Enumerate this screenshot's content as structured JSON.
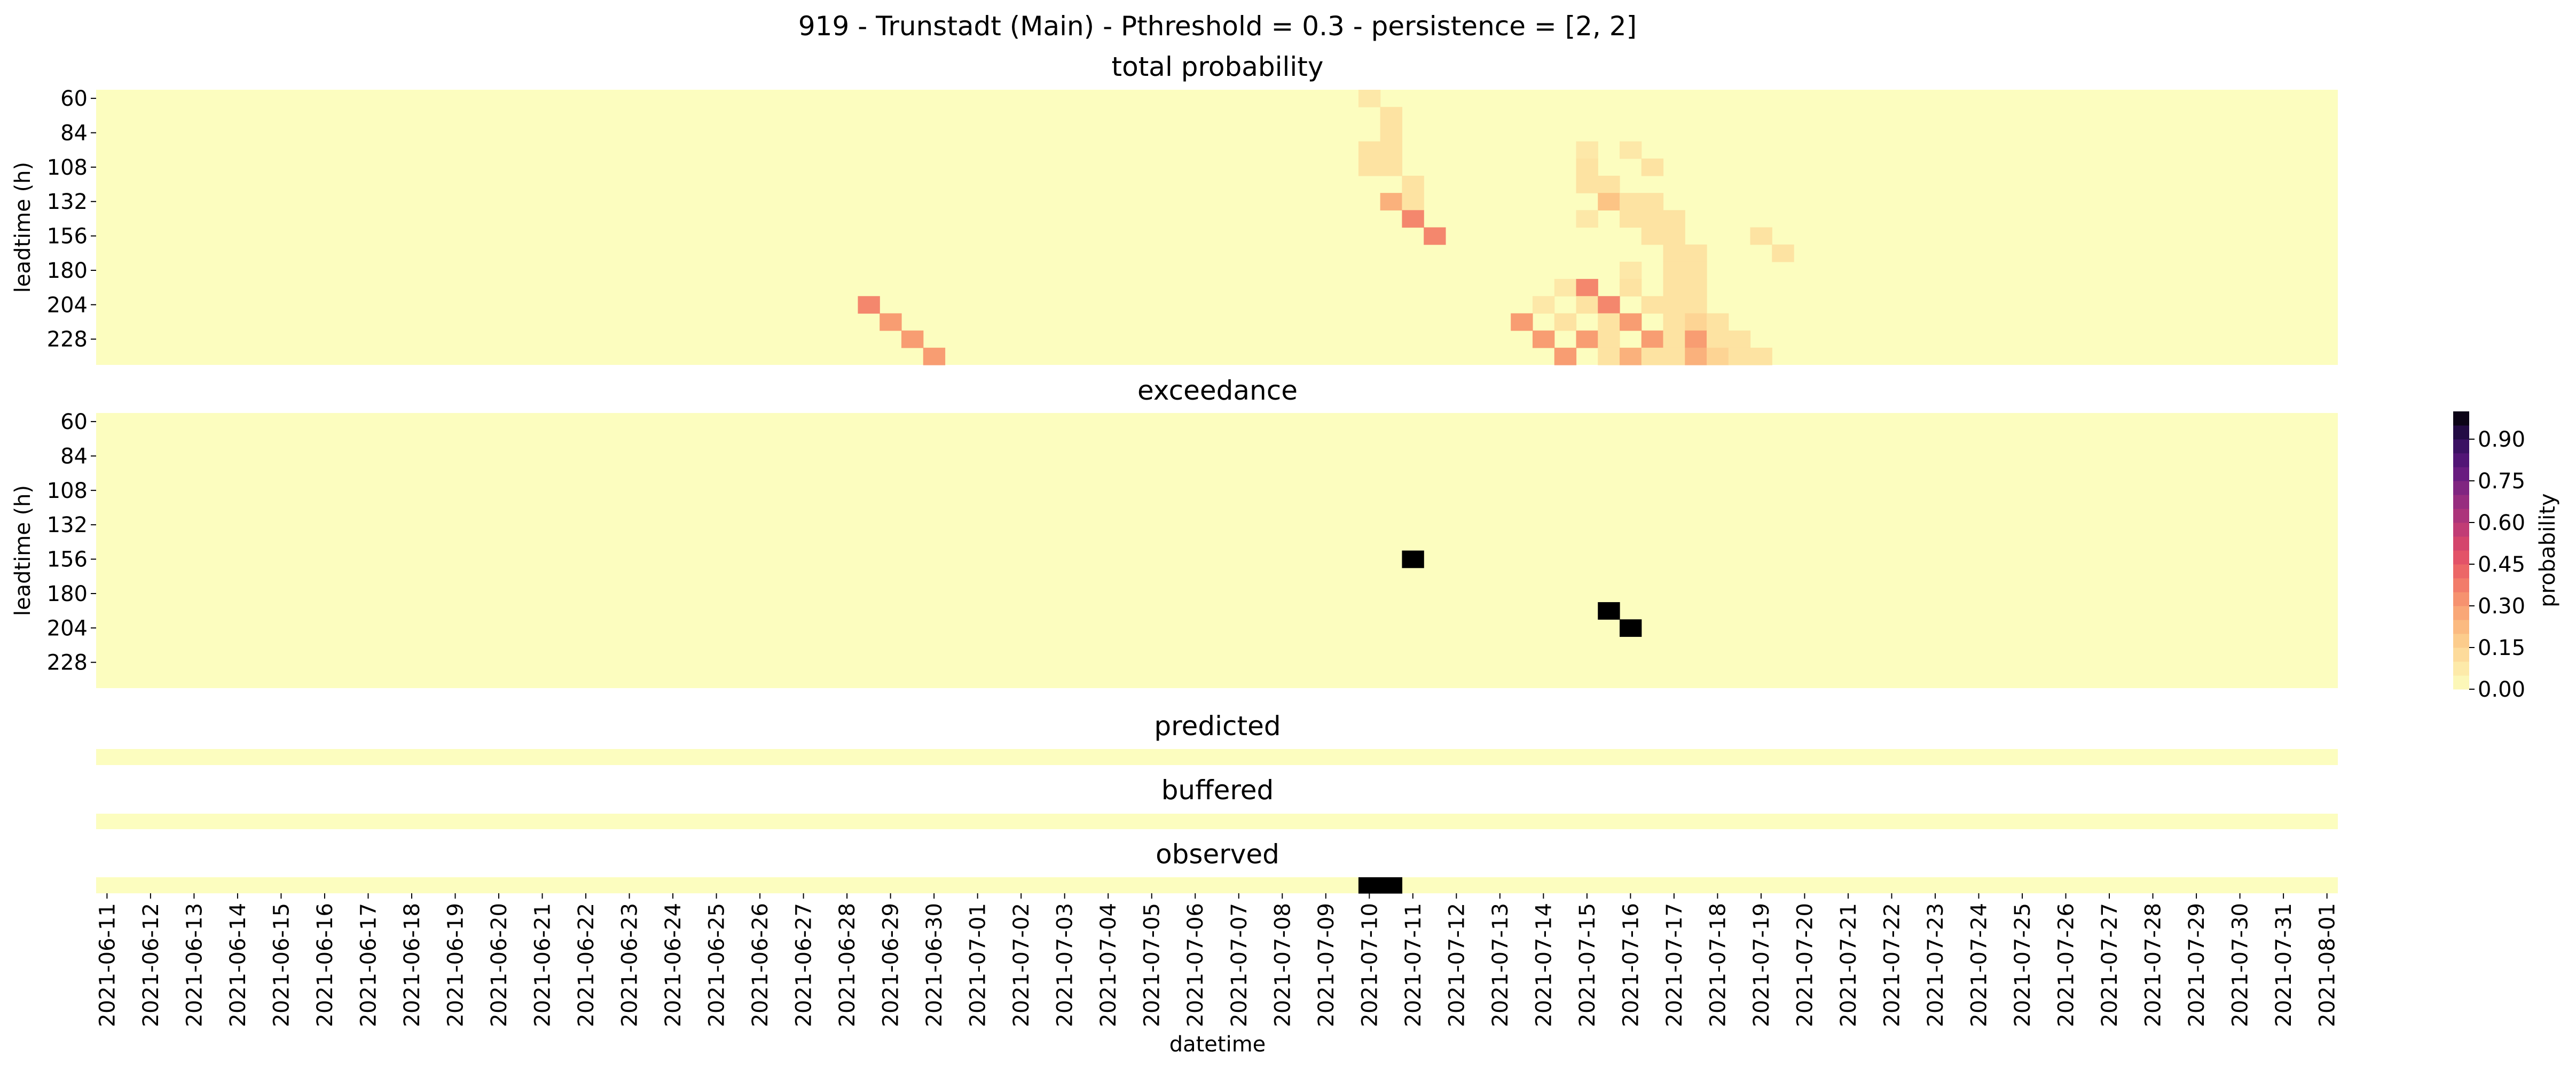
{
  "suptitle": "919 - Trunstadt (Main) - Pthreshold = 0.3 - persistence = [2, 2]",
  "xlabel": "datetime",
  "colorbar": {
    "label": "probability",
    "ticks": [
      "0.00",
      "0.15",
      "0.30",
      "0.45",
      "0.60",
      "0.75",
      "0.90"
    ],
    "tick_values": [
      0,
      0.15,
      0.3,
      0.45,
      0.6,
      0.75,
      0.9
    ],
    "vmin": 0,
    "vmax": 1,
    "colormap": "magma_r",
    "stops": [
      "#fcfdbf",
      "#fde3a2",
      "#fcc485",
      "#f89d72",
      "#f07167",
      "#de4968",
      "#b73779",
      "#8c2981",
      "#5d177f",
      "#2f0f5a",
      "#000000"
    ]
  },
  "chart_data": {
    "type": "heatmap",
    "x_dates": [
      "2021-06-11",
      "2021-06-12",
      "2021-06-13",
      "2021-06-14",
      "2021-06-15",
      "2021-06-16",
      "2021-06-17",
      "2021-06-18",
      "2021-06-19",
      "2021-06-20",
      "2021-06-21",
      "2021-06-22",
      "2021-06-23",
      "2021-06-24",
      "2021-06-25",
      "2021-06-26",
      "2021-06-27",
      "2021-06-28",
      "2021-06-29",
      "2021-06-30",
      "2021-07-01",
      "2021-07-02",
      "2021-07-03",
      "2021-07-04",
      "2021-07-05",
      "2021-07-06",
      "2021-07-07",
      "2021-07-08",
      "2021-07-09",
      "2021-07-10",
      "2021-07-11",
      "2021-07-12",
      "2021-07-13",
      "2021-07-14",
      "2021-07-15",
      "2021-07-16",
      "2021-07-17",
      "2021-07-18",
      "2021-07-19",
      "2021-07-20",
      "2021-07-21",
      "2021-07-22",
      "2021-07-23",
      "2021-07-24",
      "2021-07-25",
      "2021-07-26",
      "2021-07-27",
      "2021-07-28",
      "2021-07-29",
      "2021-07-30",
      "2021-07-31",
      "2021-08-01"
    ],
    "time_step_hours": 12,
    "panels": [
      {
        "title": "total probability",
        "ylabel": "leadtime (h)",
        "y_ticks": [
          "60",
          "84",
          "108",
          "132",
          "156",
          "180",
          "204",
          "228"
        ],
        "leadtime_range_h": [
          60,
          240
        ],
        "leadtime_step_h": 12,
        "background": 0,
        "cells": [
          {
            "t": "2021-07-10 00:00",
            "lead": 60,
            "v": 0.08
          },
          {
            "t": "2021-07-10 12:00",
            "lead": 72,
            "v": 0.1
          },
          {
            "t": "2021-07-10 12:00",
            "lead": 84,
            "v": 0.1
          },
          {
            "t": "2021-07-10 00:00",
            "lead": 96,
            "v": 0.1
          },
          {
            "t": "2021-07-10 12:00",
            "lead": 96,
            "v": 0.1
          },
          {
            "t": "2021-07-10 00:00",
            "lead": 108,
            "v": 0.1
          },
          {
            "t": "2021-07-10 12:00",
            "lead": 108,
            "v": 0.1
          },
          {
            "t": "2021-07-11 00:00",
            "lead": 120,
            "v": 0.1
          },
          {
            "t": "2021-07-10 12:00",
            "lead": 132,
            "v": 0.25
          },
          {
            "t": "2021-07-11 00:00",
            "lead": 132,
            "v": 0.1
          },
          {
            "t": "2021-07-11 00:00",
            "lead": 144,
            "v": 0.35
          },
          {
            "t": "2021-07-11 12:00",
            "lead": 156,
            "v": 0.35
          },
          {
            "t": "2021-06-28 12:00",
            "lead": 204,
            "v": 0.35
          },
          {
            "t": "2021-06-29 00:00",
            "lead": 216,
            "v": 0.3
          },
          {
            "t": "2021-06-29 12:00",
            "lead": 228,
            "v": 0.3
          },
          {
            "t": "2021-06-30 00:00",
            "lead": 240,
            "v": 0.3
          },
          {
            "t": "2021-07-15 00:00",
            "lead": 96,
            "v": 0.08
          },
          {
            "t": "2021-07-16 00:00",
            "lead": 96,
            "v": 0.08
          },
          {
            "t": "2021-07-15 00:00",
            "lead": 108,
            "v": 0.1
          },
          {
            "t": "2021-07-16 12:00",
            "lead": 108,
            "v": 0.1
          },
          {
            "t": "2021-07-15 00:00",
            "lead": 120,
            "v": 0.1
          },
          {
            "t": "2021-07-15 12:00",
            "lead": 120,
            "v": 0.1
          },
          {
            "t": "2021-07-15 12:00",
            "lead": 132,
            "v": 0.2
          },
          {
            "t": "2021-07-16 00:00",
            "lead": 132,
            "v": 0.1
          },
          {
            "t": "2021-07-16 12:00",
            "lead": 132,
            "v": 0.1
          },
          {
            "t": "2021-07-15 00:00",
            "lead": 144,
            "v": 0.08
          },
          {
            "t": "2021-07-16 00:00",
            "lead": 144,
            "v": 0.1
          },
          {
            "t": "2021-07-16 12:00",
            "lead": 144,
            "v": 0.1
          },
          {
            "t": "2021-07-17 00:00",
            "lead": 144,
            "v": 0.1
          },
          {
            "t": "2021-07-16 12:00",
            "lead": 156,
            "v": 0.1
          },
          {
            "t": "2021-07-17 00:00",
            "lead": 156,
            "v": 0.1
          },
          {
            "t": "2021-07-19 00:00",
            "lead": 156,
            "v": 0.1
          },
          {
            "t": "2021-07-17 00:00",
            "lead": 168,
            "v": 0.1
          },
          {
            "t": "2021-07-17 12:00",
            "lead": 168,
            "v": 0.1
          },
          {
            "t": "2021-07-19 12:00",
            "lead": 168,
            "v": 0.1
          },
          {
            "t": "2021-07-16 00:00",
            "lead": 180,
            "v": 0.08
          },
          {
            "t": "2021-07-17 00:00",
            "lead": 180,
            "v": 0.1
          },
          {
            "t": "2021-07-17 12:00",
            "lead": 180,
            "v": 0.1
          },
          {
            "t": "2021-07-14 12:00",
            "lead": 192,
            "v": 0.08
          },
          {
            "t": "2021-07-15 00:00",
            "lead": 192,
            "v": 0.35
          },
          {
            "t": "2021-07-16 00:00",
            "lead": 192,
            "v": 0.1
          },
          {
            "t": "2021-07-17 00:00",
            "lead": 192,
            "v": 0.1
          },
          {
            "t": "2021-07-17 12:00",
            "lead": 192,
            "v": 0.1
          },
          {
            "t": "2021-07-14 00:00",
            "lead": 204,
            "v": 0.08
          },
          {
            "t": "2021-07-15 00:00",
            "lead": 204,
            "v": 0.1
          },
          {
            "t": "2021-07-15 12:00",
            "lead": 204,
            "v": 0.35
          },
          {
            "t": "2021-07-16 12:00",
            "lead": 204,
            "v": 0.1
          },
          {
            "t": "2021-07-17 00:00",
            "lead": 204,
            "v": 0.1
          },
          {
            "t": "2021-07-17 12:00",
            "lead": 204,
            "v": 0.1
          },
          {
            "t": "2021-07-13 12:00",
            "lead": 216,
            "v": 0.3
          },
          {
            "t": "2021-07-14 12:00",
            "lead": 216,
            "v": 0.1
          },
          {
            "t": "2021-07-15 12:00",
            "lead": 216,
            "v": 0.1
          },
          {
            "t": "2021-07-16 00:00",
            "lead": 216,
            "v": 0.3
          },
          {
            "t": "2021-07-17 00:00",
            "lead": 216,
            "v": 0.1
          },
          {
            "t": "2021-07-17 12:00",
            "lead": 216,
            "v": 0.15
          },
          {
            "t": "2021-07-18 00:00",
            "lead": 216,
            "v": 0.1
          },
          {
            "t": "2021-07-14 00:00",
            "lead": 228,
            "v": 0.3
          },
          {
            "t": "2021-07-15 00:00",
            "lead": 228,
            "v": 0.3
          },
          {
            "t": "2021-07-15 12:00",
            "lead": 228,
            "v": 0.1
          },
          {
            "t": "2021-07-16 12:00",
            "lead": 228,
            "v": 0.3
          },
          {
            "t": "2021-07-17 00:00",
            "lead": 228,
            "v": 0.1
          },
          {
            "t": "2021-07-17 12:00",
            "lead": 228,
            "v": 0.3
          },
          {
            "t": "2021-07-18 00:00",
            "lead": 228,
            "v": 0.1
          },
          {
            "t": "2021-07-18 12:00",
            "lead": 228,
            "v": 0.1
          },
          {
            "t": "2021-07-14 12:00",
            "lead": 240,
            "v": 0.3
          },
          {
            "t": "2021-07-15 12:00",
            "lead": 240,
            "v": 0.1
          },
          {
            "t": "2021-07-16 00:00",
            "lead": 240,
            "v": 0.25
          },
          {
            "t": "2021-07-16 12:00",
            "lead": 240,
            "v": 0.1
          },
          {
            "t": "2021-07-17 00:00",
            "lead": 240,
            "v": 0.1
          },
          {
            "t": "2021-07-17 12:00",
            "lead": 240,
            "v": 0.25
          },
          {
            "t": "2021-07-18 00:00",
            "lead": 240,
            "v": 0.15
          },
          {
            "t": "2021-07-18 12:00",
            "lead": 240,
            "v": 0.1
          },
          {
            "t": "2021-07-19 00:00",
            "lead": 240,
            "v": 0.1
          }
        ]
      },
      {
        "title": "exceedance",
        "ylabel": "leadtime (h)",
        "y_ticks": [
          "60",
          "84",
          "108",
          "132",
          "156",
          "180",
          "204",
          "228"
        ],
        "leadtime_range_h": [
          60,
          240
        ],
        "leadtime_step_h": 12,
        "background": 0,
        "cells": [
          {
            "t": "2021-07-11 00:00",
            "lead": 156,
            "v": 1
          },
          {
            "t": "2021-07-15 12:00",
            "lead": 192,
            "v": 1
          },
          {
            "t": "2021-07-16 00:00",
            "lead": 204,
            "v": 1
          }
        ]
      },
      {
        "title": "predicted",
        "background": 0,
        "cells": []
      },
      {
        "title": "buffered",
        "background": 0,
        "cells": []
      },
      {
        "title": "observed",
        "background": 0,
        "cells": [
          {
            "t": "2021-07-10 00:00",
            "v": 1
          },
          {
            "t": "2021-07-10 12:00",
            "v": 1
          }
        ]
      }
    ]
  }
}
